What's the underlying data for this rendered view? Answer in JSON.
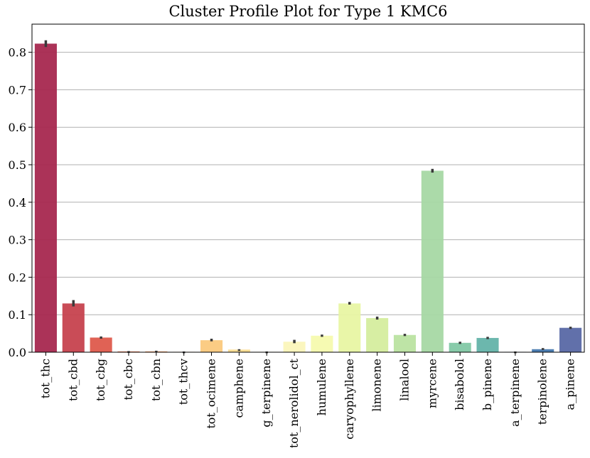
{
  "chart_data": {
    "type": "bar",
    "title": "Cluster Profile Plot for Type 1 KMC6",
    "xlabel": "",
    "ylabel": "",
    "ylim": [
      0,
      0.875
    ],
    "yticks": [
      0.0,
      0.1,
      0.2,
      0.3,
      0.4,
      0.5,
      0.6,
      0.7,
      0.8
    ],
    "ytick_labels": [
      "0.0",
      "0.1",
      "0.2",
      "0.3",
      "0.4",
      "0.5",
      "0.6",
      "0.7",
      "0.8"
    ],
    "grid": "horizontal",
    "categories": [
      "tot_thc",
      "tot_cbd",
      "tot_cbg",
      "tot_cbc",
      "tot_cbn",
      "tot_thcv",
      "tot_ocimene",
      "camphene",
      "g_terpinene",
      "tot_nerolidol_ct",
      "humulene",
      "caryophyllene",
      "limonene",
      "linalool",
      "myrcene",
      "bisabolol",
      "b_pinene",
      "a_terpinene",
      "terpinolene",
      "a_pinene"
    ],
    "values": [
      0.823,
      0.13,
      0.039,
      0.002,
      0.002,
      0.001,
      0.032,
      0.007,
      0.001,
      0.028,
      0.044,
      0.13,
      0.091,
      0.046,
      0.484,
      0.025,
      0.038,
      0.001,
      0.008,
      0.065
    ],
    "error_low": [
      0.814,
      0.122,
      0.036,
      0.001,
      0.001,
      0.0,
      0.029,
      0.006,
      0.0,
      0.024,
      0.041,
      0.127,
      0.087,
      0.043,
      0.479,
      0.022,
      0.035,
      0.0,
      0.006,
      0.062
    ],
    "error_high": [
      0.832,
      0.139,
      0.042,
      0.003,
      0.004,
      0.002,
      0.036,
      0.008,
      0.002,
      0.033,
      0.047,
      0.134,
      0.095,
      0.049,
      0.489,
      0.028,
      0.041,
      0.002,
      0.011,
      0.068
    ],
    "colors": [
      "#a7284f",
      "#c6424e",
      "#de5a4c",
      "#ed744a",
      "#f59253",
      "#f8b068",
      "#fbc97d",
      "#fddd91",
      "#fcebad",
      "#fbf5ba",
      "#f5faae",
      "#e8f5a3",
      "#d5ed9e",
      "#bae3a1",
      "#a6d8a4",
      "#82c8a5",
      "#64b3a9",
      "#4996b2",
      "#4377ae",
      "#5868a5"
    ],
    "bar_alpha": 0.95,
    "grid_color": "#b0b0b0",
    "error_color": "#3a3a3a"
  }
}
